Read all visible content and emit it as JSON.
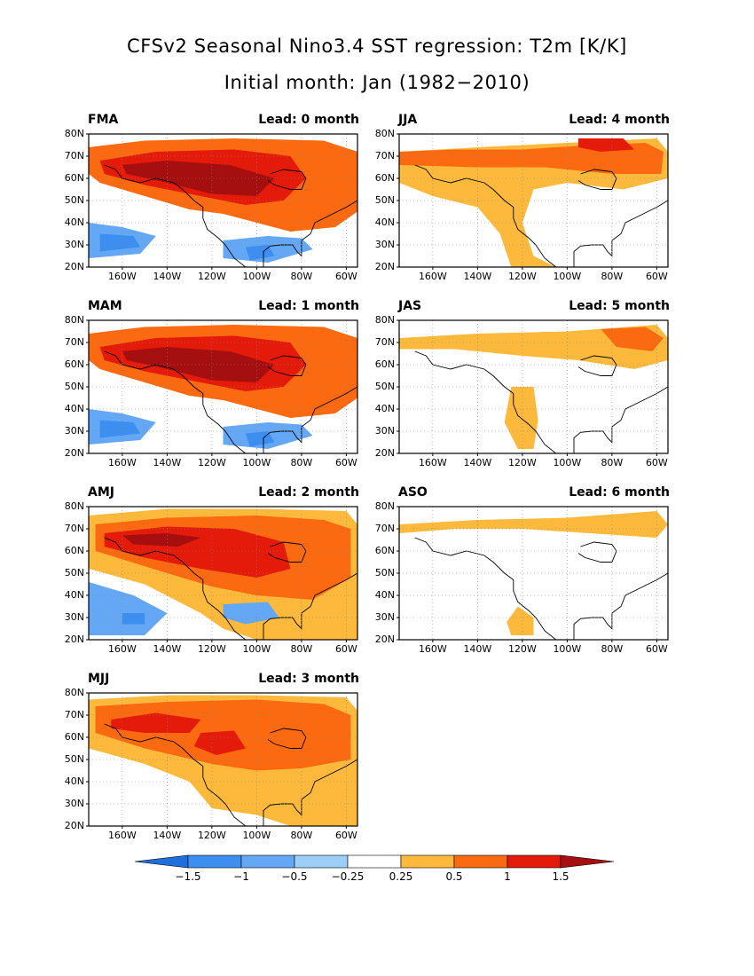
{
  "title_line1": "CFSv2 Seasonal Nino3.4 SST regression: T2m [K/K]",
  "title_line2": "Initial month: Jan (1982−2010)",
  "panels": [
    {
      "season": "FMA",
      "lead": "Lead: 0 month",
      "pattern": "strong"
    },
    {
      "season": "JJA",
      "lead": "Lead: 4 month",
      "pattern": "weak"
    },
    {
      "season": "MAM",
      "lead": "Lead: 1 month",
      "pattern": "strong"
    },
    {
      "season": "JAS",
      "lead": "Lead: 5 month",
      "pattern": "weaker"
    },
    {
      "season": "AMJ",
      "lead": "Lead: 2 month",
      "pattern": "strong2"
    },
    {
      "season": "ASO",
      "lead": "Lead: 6 month",
      "pattern": "weakest"
    },
    {
      "season": "MJJ",
      "lead": "Lead: 3 month",
      "pattern": "medium"
    }
  ],
  "lat_ticks": [
    "80N",
    "70N",
    "60N",
    "50N",
    "40N",
    "30N",
    "20N"
  ],
  "lon_ticks": [
    "160W",
    "140W",
    "120W",
    "100W",
    "80W",
    "60W"
  ],
  "colorbar": {
    "tick_labels": [
      "−1.5",
      "−1",
      "−0.5",
      "−0.25",
      "0.25",
      "0.5",
      "1",
      "1.5"
    ],
    "colors": [
      "#1e6fdc",
      "#3c8ef0",
      "#64a8f5",
      "#9ccef8",
      "#ffffff",
      "#fdb93c",
      "#fb6a10",
      "#e41a0a",
      "#a50f0f"
    ]
  }
}
